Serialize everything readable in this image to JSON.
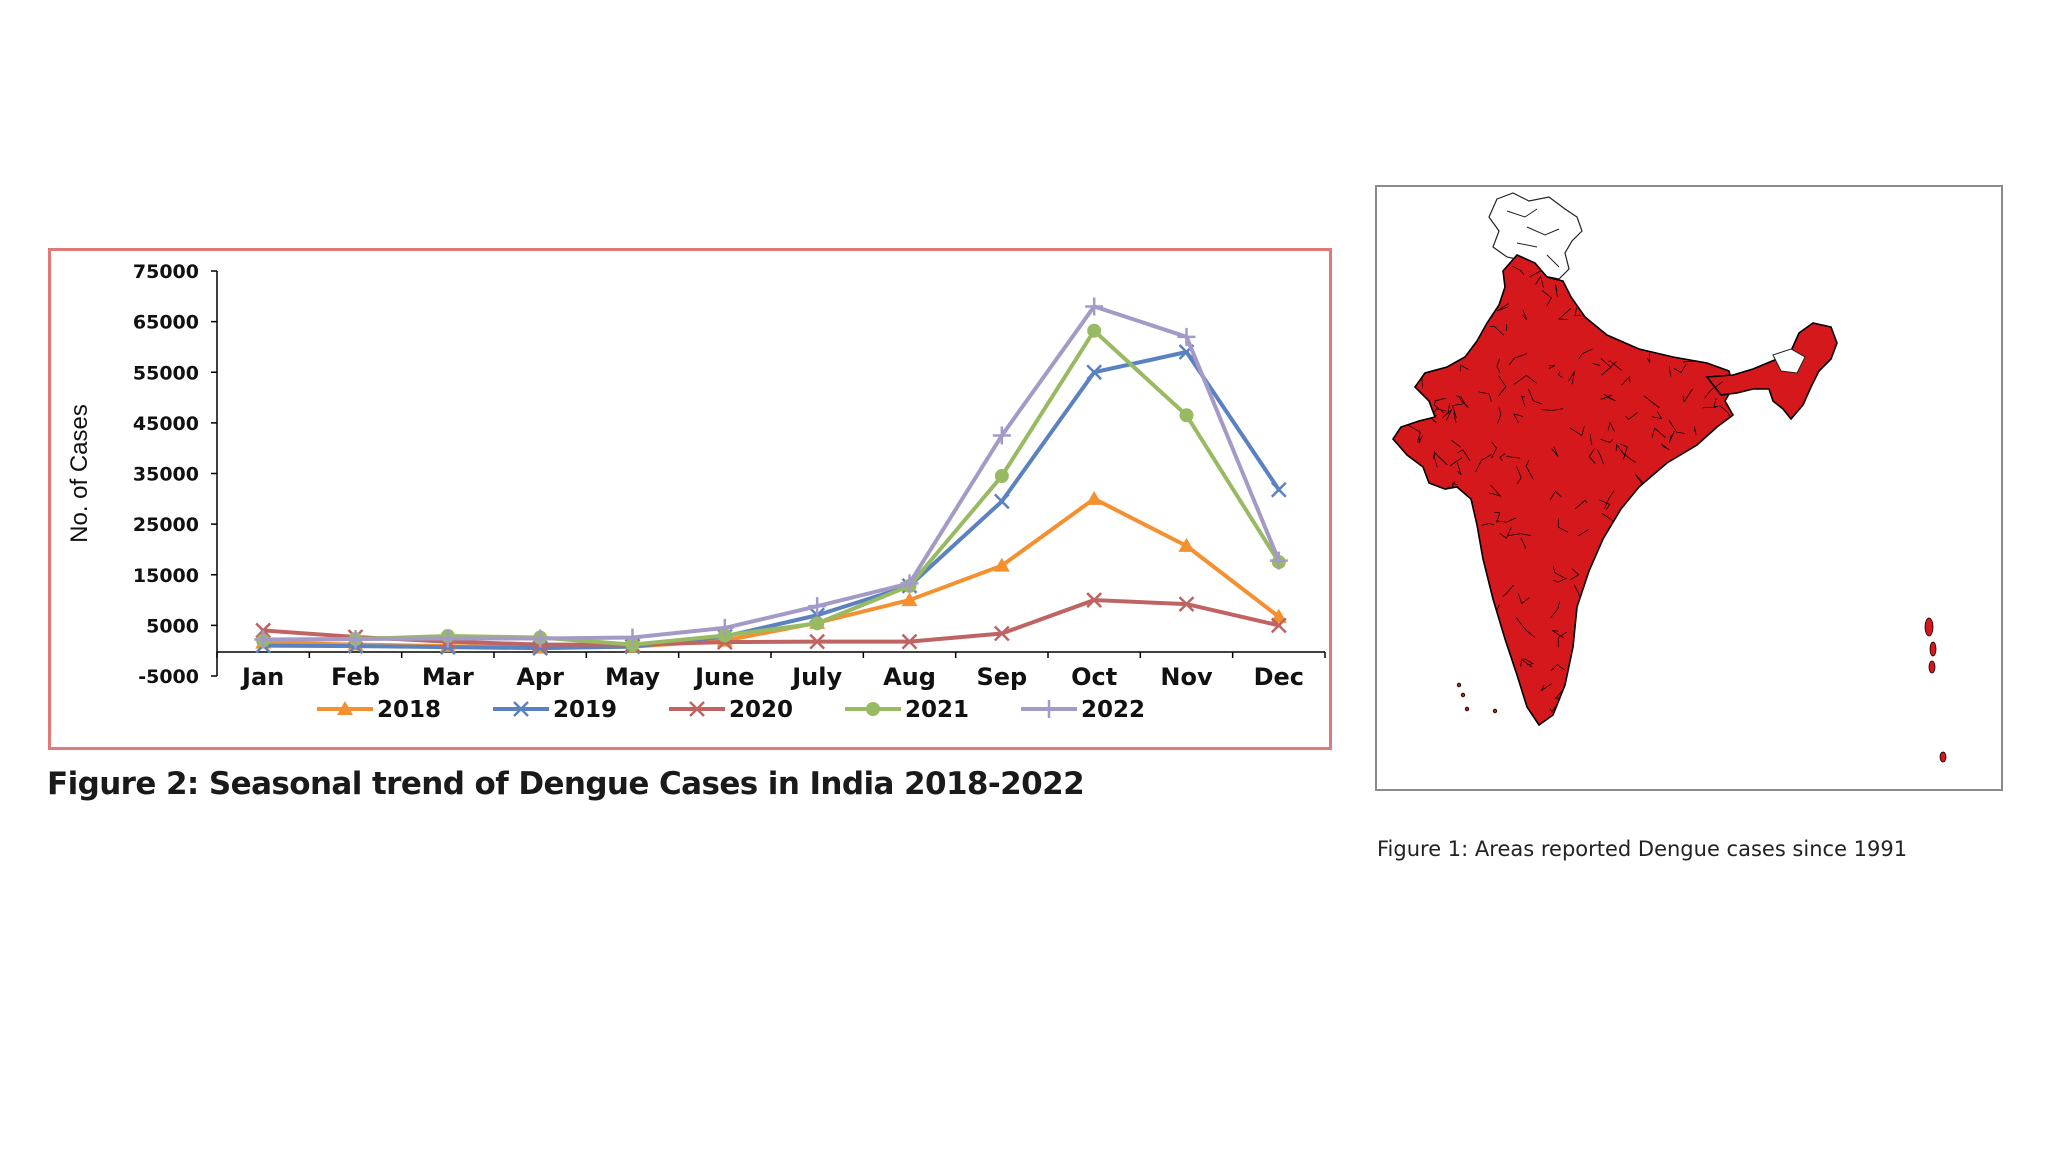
{
  "figure2": {
    "caption": "Figure 2: Seasonal trend of Dengue Cases in India 2018-2022"
  },
  "figure1": {
    "caption": "Figure 1: Areas reported Dengue cases since 1991",
    "map_fill_color": "#d4181c",
    "map_border_color": "#000000"
  },
  "chart_data": {
    "type": "line",
    "ylabel": "No. of Cases",
    "ylim": [
      -5000,
      75000
    ],
    "yticks": [
      75000,
      65000,
      55000,
      45000,
      35000,
      25000,
      15000,
      5000,
      -5000
    ],
    "categories": [
      "Jan",
      "Feb",
      "Mar",
      "Apr",
      "May",
      "June",
      "July",
      "Aug",
      "Sep",
      "Oct",
      "Nov",
      "Dec"
    ],
    "grid": false,
    "legend_position": "bottom",
    "series": [
      {
        "name": "2018",
        "color": "#f4902f",
        "marker": "triangle",
        "values": [
          1600,
          1200,
          900,
          600,
          800,
          2000,
          5500,
          10000,
          16800,
          30000,
          20700,
          6700
        ]
      },
      {
        "name": "2019",
        "color": "#5b82c0",
        "marker": "x",
        "values": [
          1000,
          900,
          700,
          500,
          800,
          2800,
          7000,
          12800,
          29500,
          55000,
          59000,
          31800
        ]
      },
      {
        "name": "2020",
        "color": "#bf6463",
        "marker": "x",
        "values": [
          4000,
          2700,
          1800,
          1200,
          1200,
          1700,
          1800,
          1800,
          3400,
          10000,
          9200,
          5000
        ]
      },
      {
        "name": "2021",
        "color": "#98ba62",
        "marker": "circle",
        "values": [
          2000,
          2300,
          2900,
          2600,
          1200,
          3000,
          5400,
          12800,
          34500,
          63200,
          46500,
          17500
        ]
      },
      {
        "name": "2022",
        "color": "#a49ac8",
        "marker": "plus",
        "values": [
          2200,
          2300,
          2400,
          2400,
          2600,
          4500,
          8800,
          13300,
          42500,
          68000,
          62000,
          17800
        ]
      }
    ]
  }
}
